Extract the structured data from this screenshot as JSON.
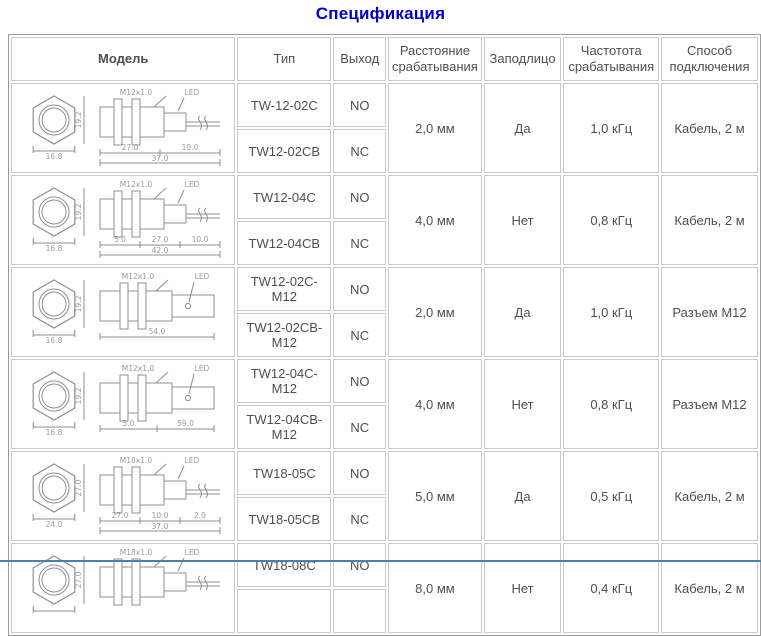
{
  "page": {
    "title": "Спецификация",
    "title_color": "#0000cc",
    "bottom_rule_color": "#4a7fae"
  },
  "table": {
    "headers": [
      {
        "label": "Модель"
      },
      {
        "label": "Тип"
      },
      {
        "label": "Выход"
      },
      {
        "label": "Расстояние срабатывания"
      },
      {
        "label": "Заподлицо"
      },
      {
        "label": "Частотота срабатывания"
      },
      {
        "label": "Способ подключения"
      }
    ],
    "groups": [
      {
        "drawing": {
          "hex_w": "16.8",
          "hex_h": "19.2",
          "thread": "M12x1.0",
          "led": "LED",
          "type": "cable",
          "dims_a": [
            "27.0",
            "10.0"
          ],
          "dims_b": [
            "37.0"
          ]
        },
        "rows": [
          {
            "model": "TW-12-02C",
            "output": "NO"
          },
          {
            "model": "TW12-02CB",
            "output": "NC"
          }
        ],
        "distance": "2,0 мм",
        "flush": "Да",
        "frequency": "1,0 кГц",
        "connection": "Кабель, 2 м"
      },
      {
        "drawing": {
          "hex_w": "16.8",
          "hex_h": "19.2",
          "thread": "M12x1.0",
          "led": "LED",
          "type": "cable",
          "dims_a": [
            "5.0",
            "27.0",
            "10.0"
          ],
          "dims_b": [
            "42.0"
          ]
        },
        "rows": [
          {
            "model": "TW12-04C",
            "output": "NO"
          },
          {
            "model": "TW12-04CB",
            "output": "NC"
          }
        ],
        "distance": "4,0 мм",
        "flush": "Нет",
        "frequency": "0,8 кГц",
        "connection": "Кабель, 2 м"
      },
      {
        "drawing": {
          "hex_w": "16.8",
          "hex_h": "19.2",
          "thread": "M12x1.0",
          "led": "LED",
          "type": "connector",
          "dims_a": [
            "54.0"
          ],
          "dims_b": []
        },
        "rows": [
          {
            "model": "TW12-02C-M12",
            "output": "NO"
          },
          {
            "model": "TW12-02CB-M12",
            "output": "NC"
          }
        ],
        "distance": "2,0 мм",
        "flush": "Да",
        "frequency": "1,0 кГц",
        "connection": "Разъем М12"
      },
      {
        "drawing": {
          "hex_w": "16.8",
          "hex_h": "19.2",
          "thread": "M12x1.0",
          "led": "LED",
          "type": "connector",
          "dims_a": [
            "5.0",
            "59.0"
          ],
          "dims_b": []
        },
        "rows": [
          {
            "model": "TW12-04C-M12",
            "output": "NO"
          },
          {
            "model": "TW12-04CB-M12",
            "output": "NC"
          }
        ],
        "distance": "4,0 мм",
        "flush": "Нет",
        "frequency": "0,8 кГц",
        "connection": "Разъем М12"
      },
      {
        "drawing": {
          "hex_w": "24.0",
          "hex_h": "27.0",
          "thread": "M18x1.0",
          "led": "LED",
          "type": "cable",
          "dims_a": [
            "27.0",
            "10.0",
            "2.0"
          ],
          "dims_b": [
            "37.0"
          ]
        },
        "rows": [
          {
            "model": "TW18-05C",
            "output": "NO"
          },
          {
            "model": "TW18-05CB",
            "output": "NC"
          }
        ],
        "distance": "5,0 мм",
        "flush": "Да",
        "frequency": "0,5 кГц",
        "connection": "Кабель, 2 м"
      },
      {
        "drawing": {
          "hex_w": "",
          "hex_h": "27.0",
          "thread": "M18x1.0",
          "led": "LED",
          "type": "cable",
          "dims_a": [],
          "dims_b": []
        },
        "rows": [
          {
            "model": "TW18-08C",
            "output": "NO"
          },
          {
            "model": "",
            "output": ""
          }
        ],
        "distance": "8,0 мм",
        "flush": "Нет",
        "frequency": "0,4 кГц",
        "connection": "Кабель, 2 м"
      }
    ]
  }
}
